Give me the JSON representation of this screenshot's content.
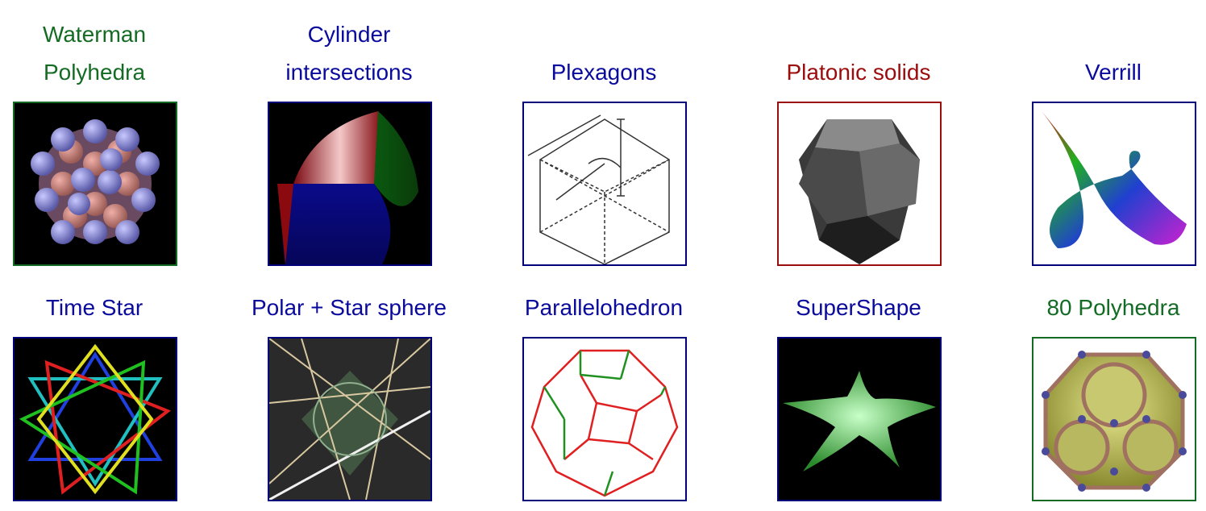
{
  "colors": {
    "link_blue": "#0a0a9c",
    "link_green": "#146b24",
    "link_red": "#9b0d0d"
  },
  "items": [
    {
      "label_1": "Waterman",
      "label_2": "Polyhedra",
      "icon": "sphere-cluster-icon",
      "color": "green"
    },
    {
      "label_1": "Cylinder",
      "label_2": "intersections",
      "icon": "cylinder-intersection-icon",
      "color": "blue"
    },
    {
      "label_1": "Plexagons",
      "icon": "plexagon-diagram-icon",
      "color": "blue"
    },
    {
      "label_1": "Platonic solids",
      "icon": "dodecahedron-icon",
      "color": "red"
    },
    {
      "label_1": "Verrill",
      "icon": "twisted-surface-icon",
      "color": "blue"
    },
    {
      "label_1": "Time Star",
      "icon": "time-star-icon",
      "color": "blue"
    },
    {
      "label_1": "Polar + Star sphere",
      "icon": "star-sphere-icon",
      "color": "blue"
    },
    {
      "label_1": "Parallelohedron",
      "icon": "parallelohedron-icon",
      "color": "blue"
    },
    {
      "label_1": "SuperShape",
      "icon": "supershape-star-icon",
      "color": "blue"
    },
    {
      "label_1": "80 Polyhedra",
      "icon": "truncated-cube-icon",
      "color": "green"
    }
  ]
}
